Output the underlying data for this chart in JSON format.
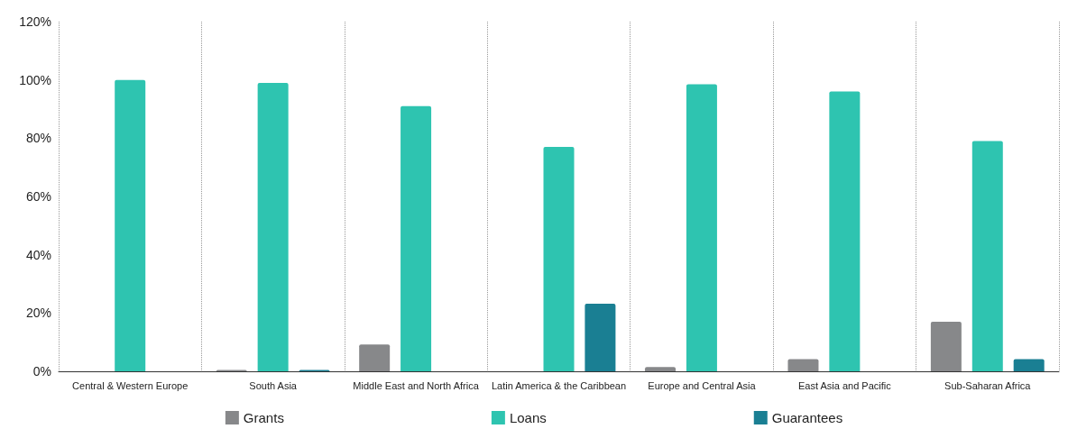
{
  "chart_data": {
    "type": "bar",
    "categories": [
      "Central & Western Europe",
      "South Asia",
      "Middle East and North Africa",
      "Latin America & the Caribbean",
      "Europe and Central Asia",
      "East Asia and Pacific",
      "Sub-Saharan Africa"
    ],
    "series": [
      {
        "name": "Grants",
        "color": "#87888a",
        "values": [
          0,
          0.5,
          9.2,
          0,
          1.5,
          4.2,
          17
        ]
      },
      {
        "name": "Loans",
        "color": "#2ec4b0",
        "values": [
          100,
          99,
          91,
          77,
          98.5,
          96,
          79
        ]
      },
      {
        "name": "Guarantees",
        "color": "#1a7f93",
        "values": [
          0,
          0.5,
          0,
          23.2,
          0,
          0,
          4.2
        ]
      }
    ],
    "ylim": [
      0,
      120
    ],
    "yticks": [
      {
        "value": 0,
        "label": "0%"
      },
      {
        "value": 20,
        "label": "20%"
      },
      {
        "value": 40,
        "label": "40%"
      },
      {
        "value": 60,
        "label": "60%"
      },
      {
        "value": 80,
        "label": "80%"
      },
      {
        "value": 100,
        "label": "100%"
      },
      {
        "value": 120,
        "label": "120%"
      }
    ],
    "grid": "x",
    "legend": "bottom"
  }
}
